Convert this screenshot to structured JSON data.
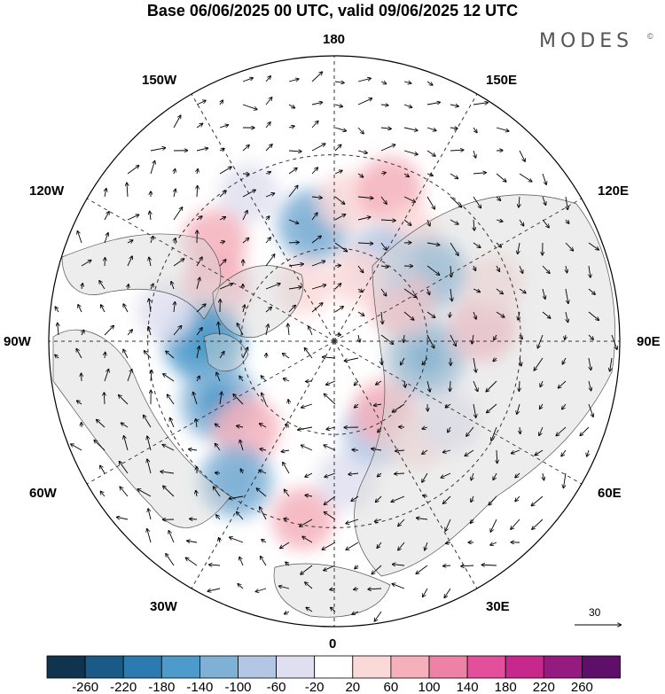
{
  "title": "Base 06/06/2025 00 UTC, valid 09/06/2025 12 UTC",
  "brand": {
    "name": "MODES",
    "mark": "©"
  },
  "longitude_labels": {
    "top": "180",
    "bottom": "0",
    "left": "90W",
    "right": "90E",
    "upper_left_1": "150W",
    "upper_left_2": "120W",
    "lower_left_1": "60W",
    "lower_left_2": "30W",
    "upper_right_1": "150E",
    "upper_right_2": "120E",
    "lower_right_1": "60E",
    "lower_right_2": "30E"
  },
  "reference_vector": {
    "label": "30"
  },
  "colorbar": {
    "colors": [
      "#10344e",
      "#1a5a86",
      "#2b7ab0",
      "#4d9bcb",
      "#7fb0d6",
      "#b3c7e4",
      "#dfdff0",
      "#ffffff",
      "#fbd9d9",
      "#f5b0bc",
      "#ee82a6",
      "#e34f9a",
      "#c7288c",
      "#961b80",
      "#5e0f6a"
    ],
    "tick_labels": [
      "-260",
      "-220",
      "-180",
      "-140",
      "-100",
      "-60",
      "-20",
      "20",
      "60",
      "100",
      "140",
      "180",
      "220",
      "260"
    ]
  },
  "anomaly_fields": [
    {
      "lon": -150,
      "colat": 55,
      "value": -45
    },
    {
      "lon": -170,
      "colat": 38,
      "value": -110
    },
    {
      "lon": 175,
      "colat": 45,
      "value": 45
    },
    {
      "lon": 160,
      "colat": 52,
      "value": 75
    },
    {
      "lon": 145,
      "colat": 42,
      "value": 40
    },
    {
      "lon": -130,
      "colat": 50,
      "value": 70
    },
    {
      "lon": -115,
      "colat": 42,
      "value": 85
    },
    {
      "lon": -100,
      "colat": 40,
      "value": 40
    },
    {
      "lon": -90,
      "colat": 42,
      "value": -150
    },
    {
      "lon": -100,
      "colat": 55,
      "value": -40
    },
    {
      "lon": -62,
      "colat": 42,
      "value": -130
    },
    {
      "lon": -45,
      "colat": 40,
      "value": 80
    },
    {
      "lon": -35,
      "colat": 55,
      "value": -110
    },
    {
      "lon": -10,
      "colat": 58,
      "value": 60
    },
    {
      "lon": 5,
      "colat": 45,
      "value": -50
    },
    {
      "lon": 25,
      "colat": 32,
      "value": -90
    },
    {
      "lon": 35,
      "colat": 28,
      "value": 70
    },
    {
      "lon": 40,
      "colat": 42,
      "value": 30
    },
    {
      "lon": 55,
      "colat": 45,
      "value": -60
    },
    {
      "lon": 80,
      "colat": 30,
      "value": -130
    },
    {
      "lon": 95,
      "colat": 48,
      "value": 80
    },
    {
      "lon": 110,
      "colat": 55,
      "value": 40
    },
    {
      "lon": 125,
      "colat": 38,
      "value": -110
    },
    {
      "lon": 120,
      "colat": 25,
      "value": 70
    },
    {
      "lon": 150,
      "colat": 30,
      "value": -90
    },
    {
      "lon": -150,
      "colat": 20,
      "value": 30
    },
    {
      "lon": 160,
      "colat": 22,
      "value": 40
    }
  ]
}
